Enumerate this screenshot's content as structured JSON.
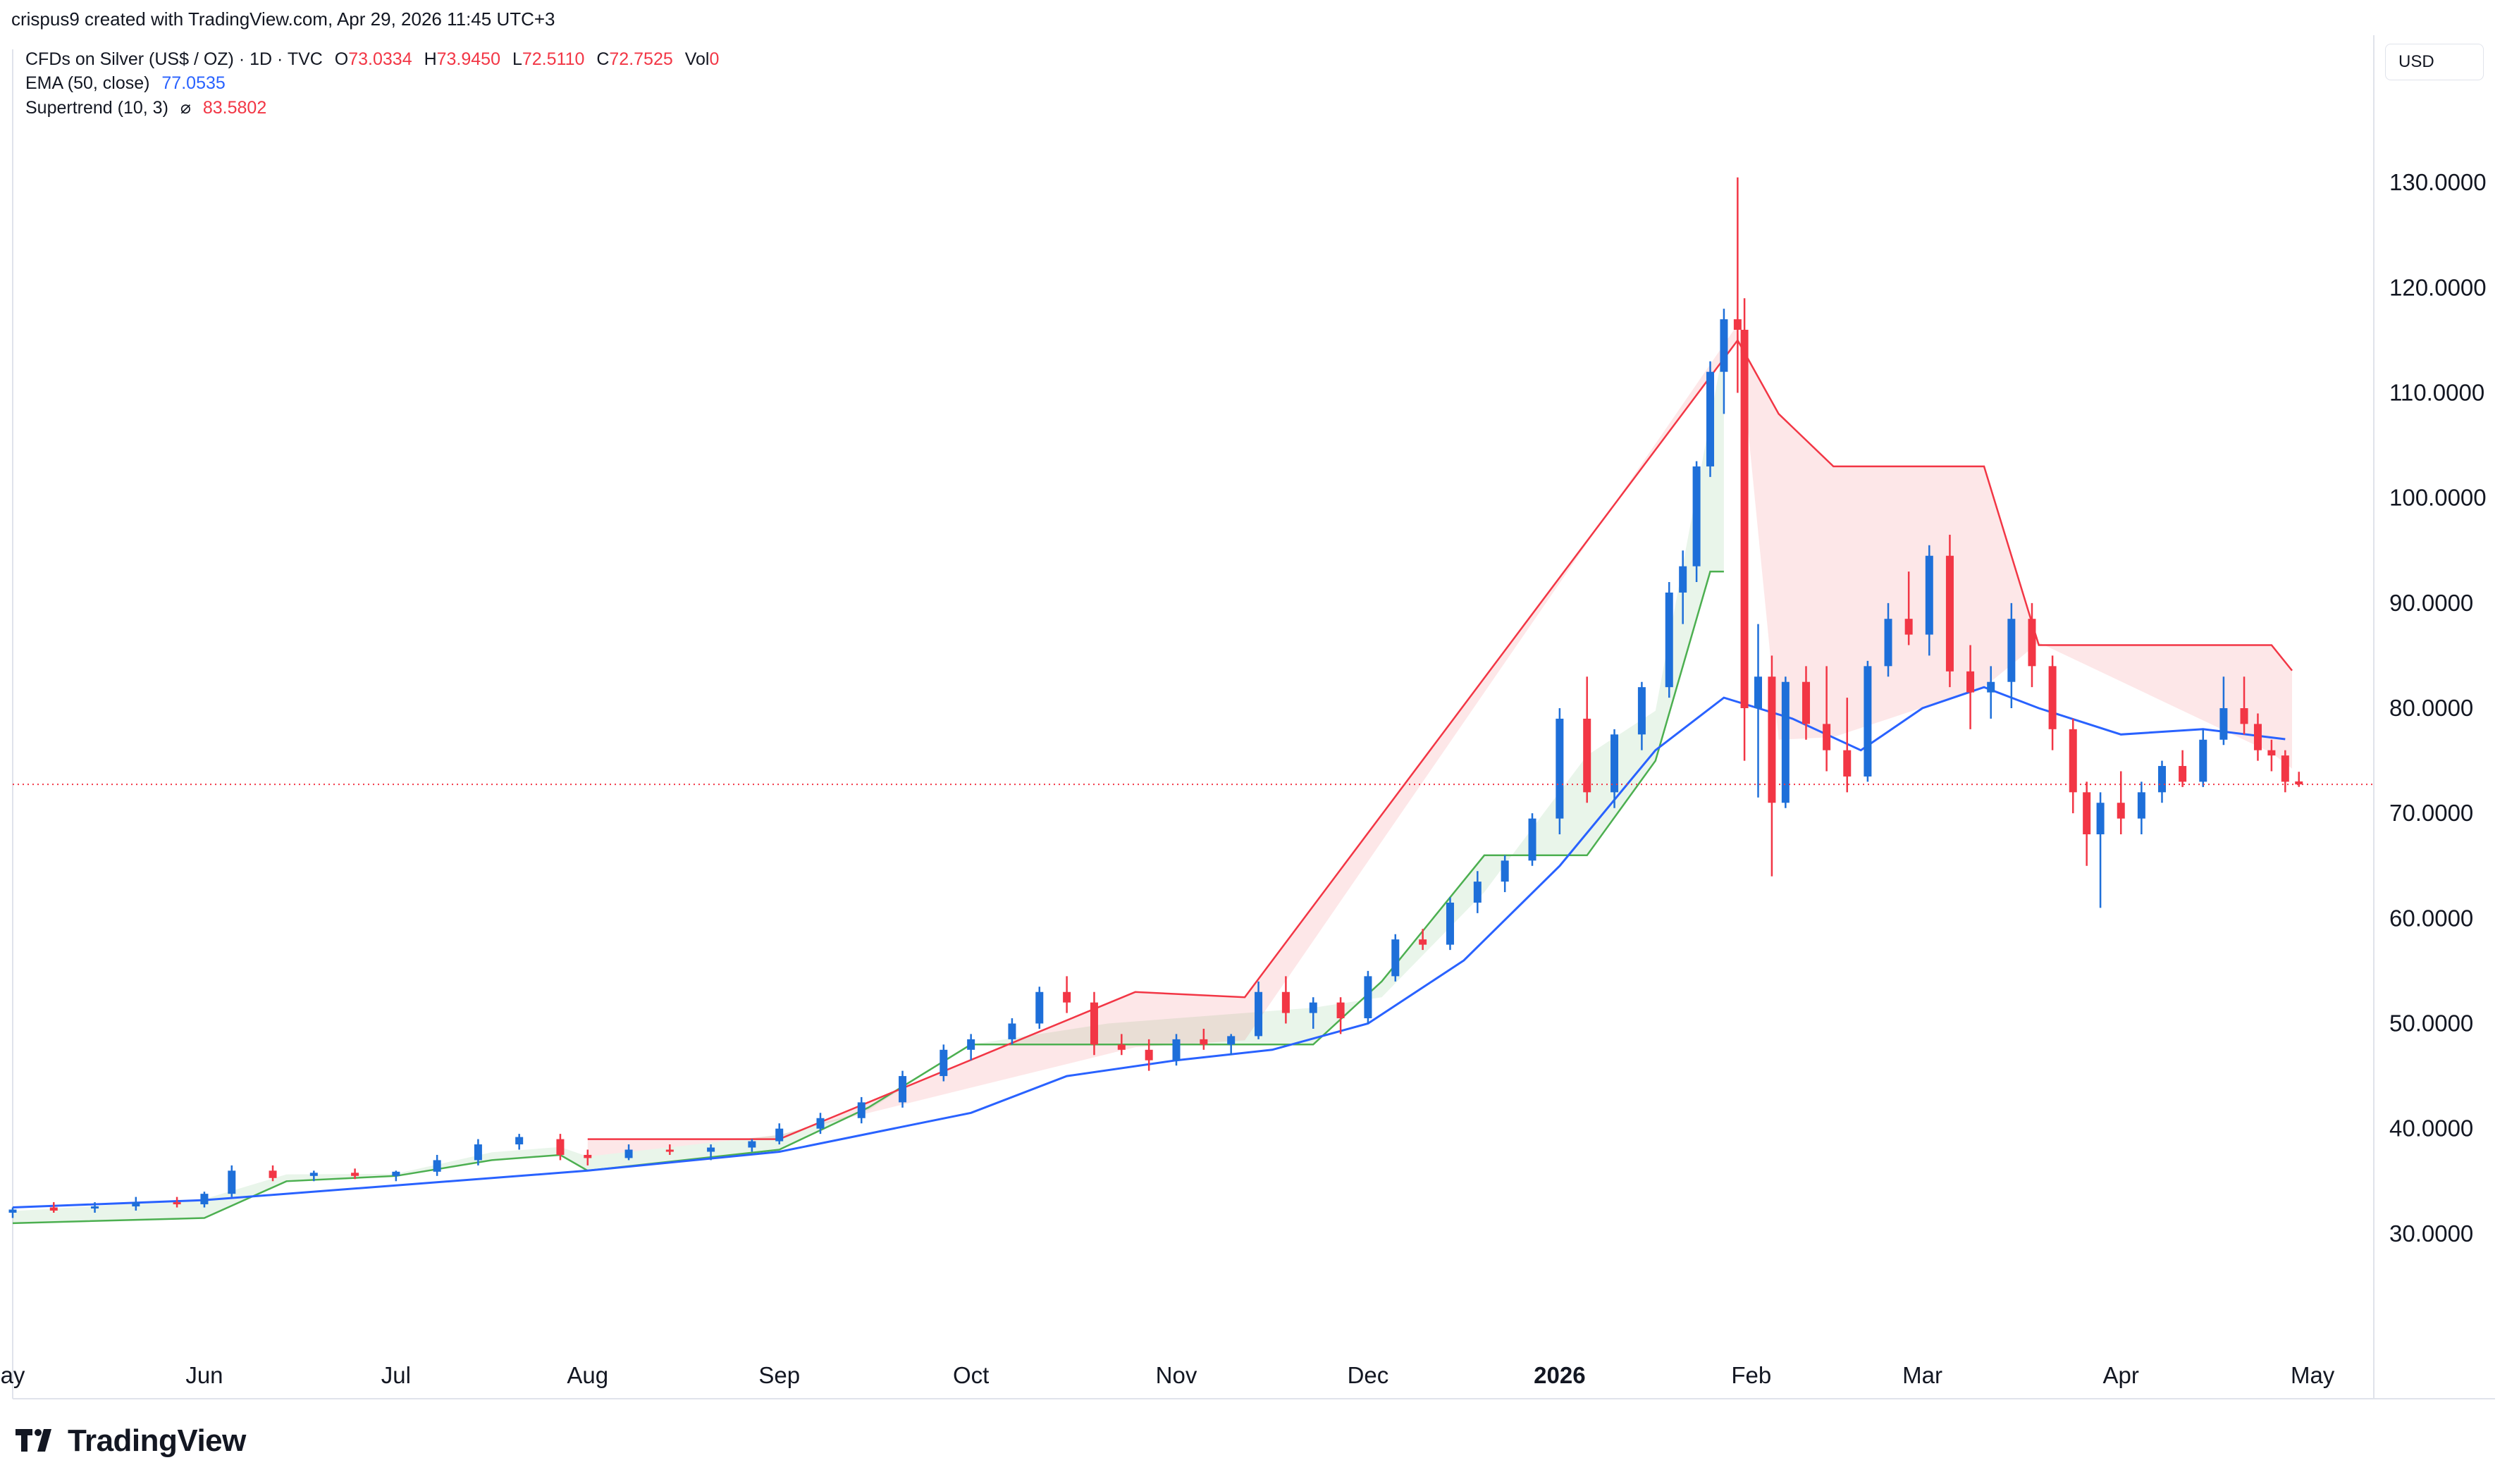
{
  "header": {
    "author": "crispus9 created with TradingView.com, Apr 29, 2026 11:45 UTC+3"
  },
  "legend": {
    "symbol": "CFDs on Silver (US$ / OZ) · 1D · TVC",
    "open_label": "O",
    "open": "73.0334",
    "high_label": "H",
    "high": "73.9450",
    "low_label": "L",
    "low": "72.5110",
    "close_label": "C",
    "close": "72.7525",
    "vol_label": "Vol",
    "vol": "0",
    "ema_label": "EMA (50, close)",
    "ema_value": "77.0535",
    "st_label": "Supertrend (10, 3)",
    "st_symbol": "⌀",
    "st_value": "83.5802"
  },
  "currency_button": "USD",
  "logo": {
    "text": "TradingView"
  },
  "colors": {
    "up": "#1e6fd9",
    "down": "#f23645",
    "ema": "#2962ff",
    "st_up": "#4caf50",
    "st_down": "#f23645",
    "grid": "#f0f3fa"
  },
  "chart_data": {
    "type": "candlestick",
    "title": "CFDs on Silver (US$ / OZ) · 1D · TVC",
    "ylim": [
      20,
      140
    ],
    "y_ticks": [
      "30.0000",
      "40.0000",
      "50.0000",
      "60.0000",
      "70.0000",
      "80.0000",
      "90.0000",
      "100.0000",
      "110.0000",
      "120.0000",
      "130.0000"
    ],
    "x_ticks": [
      {
        "label": "ay",
        "day": 0
      },
      {
        "label": "Jun",
        "day": 28
      },
      {
        "label": "Jul",
        "day": 56
      },
      {
        "label": "Aug",
        "day": 84
      },
      {
        "label": "Sep",
        "day": 112
      },
      {
        "label": "Oct",
        "day": 140
      },
      {
        "label": "Nov",
        "day": 170
      },
      {
        "label": "Dec",
        "day": 198
      },
      {
        "label": "2026",
        "day": 226
      },
      {
        "label": "Feb",
        "day": 254
      },
      {
        "label": "Mar",
        "day": 279
      },
      {
        "label": "Apr",
        "day": 308
      },
      {
        "label": "May",
        "day": 336
      }
    ],
    "last_price": 72.7525,
    "ema_50": [
      [
        0,
        32.5
      ],
      [
        28,
        33.2
      ],
      [
        56,
        34.6
      ],
      [
        84,
        36.0
      ],
      [
        112,
        37.8
      ],
      [
        140,
        41.5
      ],
      [
        154,
        45.0
      ],
      [
        170,
        46.5
      ],
      [
        184,
        47.5
      ],
      [
        198,
        50.0
      ],
      [
        212,
        56.0
      ],
      [
        226,
        65.0
      ],
      [
        240,
        76.0
      ],
      [
        250,
        81.0
      ],
      [
        260,
        79.0
      ],
      [
        270,
        76.0
      ],
      [
        279,
        80.0
      ],
      [
        288,
        82.0
      ],
      [
        296,
        80.0
      ],
      [
        308,
        77.5
      ],
      [
        320,
        78.0
      ],
      [
        332,
        77.05
      ]
    ],
    "supertrend_up": [
      [
        0,
        31.0
      ],
      [
        28,
        31.5
      ],
      [
        40,
        35.0
      ],
      [
        56,
        35.5
      ],
      [
        70,
        37.0
      ],
      [
        80,
        37.5
      ],
      [
        84,
        36.0
      ],
      [
        112,
        38.0
      ],
      [
        125,
        42.0
      ],
      [
        140,
        48.0
      ],
      [
        160,
        48.0
      ],
      [
        190,
        48.0
      ],
      [
        200,
        54.0
      ],
      [
        215,
        66.0
      ],
      [
        230,
        66.0
      ],
      [
        240,
        75.0
      ],
      [
        248,
        93.0
      ],
      [
        250,
        93.0
      ]
    ],
    "supertrend_down": [
      [
        84,
        39.0
      ],
      [
        112,
        39.0
      ],
      [
        164,
        53.0
      ],
      [
        180,
        52.5
      ],
      [
        252,
        115.0
      ],
      [
        258,
        108.0
      ],
      [
        266,
        103.0
      ],
      [
        288,
        103.0
      ],
      [
        296,
        86.0
      ],
      [
        330,
        86.0
      ],
      [
        333,
        83.58
      ]
    ],
    "candles": [
      [
        0,
        32.0,
        32.5,
        31.5,
        32.3
      ],
      [
        6,
        32.5,
        33.0,
        32.0,
        32.2
      ],
      [
        12,
        32.4,
        33.0,
        32.0,
        32.6
      ],
      [
        18,
        32.6,
        33.5,
        32.2,
        33.0
      ],
      [
        24,
        33.0,
        33.5,
        32.5,
        32.8
      ],
      [
        28,
        32.8,
        34.0,
        32.5,
        33.8
      ],
      [
        32,
        33.8,
        36.5,
        33.5,
        36.0
      ],
      [
        38,
        36.0,
        36.5,
        35.0,
        35.3
      ],
      [
        44,
        35.5,
        36.0,
        35.0,
        35.8
      ],
      [
        50,
        35.8,
        36.2,
        35.2,
        35.5
      ],
      [
        56,
        35.5,
        36.0,
        35.0,
        35.9
      ],
      [
        62,
        35.9,
        37.5,
        35.5,
        37.0
      ],
      [
        68,
        37.0,
        39.0,
        36.5,
        38.5
      ],
      [
        74,
        38.5,
        39.5,
        38.0,
        39.2
      ],
      [
        80,
        39.0,
        39.5,
        37.0,
        37.5
      ],
      [
        84,
        37.5,
        38.0,
        36.5,
        37.2
      ],
      [
        90,
        37.2,
        38.5,
        37.0,
        38.0
      ],
      [
        96,
        38.0,
        38.5,
        37.5,
        37.8
      ],
      [
        102,
        37.8,
        38.5,
        37.0,
        38.2
      ],
      [
        108,
        38.2,
        39.0,
        37.8,
        38.8
      ],
      [
        112,
        38.8,
        40.5,
        38.5,
        40.0
      ],
      [
        118,
        40.0,
        41.5,
        39.5,
        41.0
      ],
      [
        124,
        41.0,
        43.0,
        40.5,
        42.5
      ],
      [
        130,
        42.5,
        45.5,
        42.0,
        45.0
      ],
      [
        136,
        45.0,
        48.0,
        44.5,
        47.5
      ],
      [
        140,
        47.5,
        49.0,
        46.5,
        48.5
      ],
      [
        146,
        48.5,
        50.5,
        48.0,
        50.0
      ],
      [
        150,
        50.0,
        53.5,
        49.5,
        53.0
      ],
      [
        154,
        53.0,
        54.5,
        51.0,
        52.0
      ],
      [
        158,
        52.0,
        53.0,
        47.0,
        48.0
      ],
      [
        162,
        48.0,
        49.0,
        47.0,
        47.5
      ],
      [
        166,
        47.5,
        48.5,
        45.5,
        46.5
      ],
      [
        170,
        46.5,
        49.0,
        46.0,
        48.5
      ],
      [
        174,
        48.5,
        49.5,
        47.5,
        48.0
      ],
      [
        178,
        48.0,
        49.0,
        47.0,
        48.8
      ],
      [
        182,
        48.8,
        54.0,
        48.5,
        53.0
      ],
      [
        186,
        53.0,
        54.5,
        50.0,
        51.0
      ],
      [
        190,
        51.0,
        52.5,
        49.5,
        52.0
      ],
      [
        194,
        52.0,
        52.5,
        49.0,
        50.5
      ],
      [
        198,
        50.5,
        55.0,
        50.0,
        54.5
      ],
      [
        202,
        54.5,
        58.5,
        54.0,
        58.0
      ],
      [
        206,
        58.0,
        59.0,
        57.0,
        57.5
      ],
      [
        210,
        57.5,
        62.0,
        57.0,
        61.5
      ],
      [
        214,
        61.5,
        64.5,
        60.5,
        63.5
      ],
      [
        218,
        63.5,
        66.0,
        62.5,
        65.5
      ],
      [
        222,
        65.5,
        70.0,
        65.0,
        69.5
      ],
      [
        226,
        69.5,
        80.0,
        68.0,
        79.0
      ],
      [
        230,
        79.0,
        83.0,
        71.0,
        72.0
      ],
      [
        234,
        72.0,
        78.0,
        70.5,
        77.5
      ],
      [
        238,
        77.5,
        82.5,
        76.0,
        82.0
      ],
      [
        242,
        82.0,
        92.0,
        81.0,
        91.0
      ],
      [
        244,
        91.0,
        95.0,
        88.0,
        93.5
      ],
      [
        246,
        93.5,
        103.5,
        92.0,
        103.0
      ],
      [
        248,
        103.0,
        113.0,
        102.0,
        112.0
      ],
      [
        250,
        112.0,
        118.0,
        108.0,
        117.0
      ],
      [
        252,
        117.0,
        130.5,
        110.0,
        116.0
      ],
      [
        253,
        116.0,
        119.0,
        75.0,
        80.0
      ],
      [
        255,
        80.0,
        88.0,
        71.5,
        83.0
      ],
      [
        257,
        83.0,
        85.0,
        64.0,
        71.0
      ],
      [
        259,
        71.0,
        83.0,
        70.5,
        82.5
      ],
      [
        262,
        82.5,
        84.0,
        77.0,
        78.5
      ],
      [
        265,
        78.5,
        84.0,
        74.0,
        76.0
      ],
      [
        268,
        76.0,
        81.0,
        72.0,
        73.5
      ],
      [
        271,
        73.5,
        84.5,
        73.0,
        84.0
      ],
      [
        274,
        84.0,
        90.0,
        83.0,
        88.5
      ],
      [
        277,
        88.5,
        93.0,
        86.0,
        87.0
      ],
      [
        280,
        87.0,
        95.5,
        85.0,
        94.5
      ],
      [
        283,
        94.5,
        96.5,
        82.0,
        83.5
      ],
      [
        286,
        83.5,
        86.0,
        78.0,
        81.5
      ],
      [
        289,
        81.5,
        84.0,
        79.0,
        82.5
      ],
      [
        292,
        82.5,
        90.0,
        80.0,
        88.5
      ],
      [
        295,
        88.5,
        90.0,
        82.0,
        84.0
      ],
      [
        298,
        84.0,
        85.0,
        76.0,
        78.0
      ],
      [
        301,
        78.0,
        79.0,
        70.0,
        72.0
      ],
      [
        303,
        72.0,
        73.0,
        65.0,
        68.0
      ],
      [
        305,
        68.0,
        72.0,
        61.0,
        71.0
      ],
      [
        308,
        71.0,
        74.0,
        68.0,
        69.5
      ],
      [
        311,
        69.5,
        73.0,
        68.0,
        72.0
      ],
      [
        314,
        72.0,
        75.0,
        71.0,
        74.5
      ],
      [
        317,
        74.5,
        76.0,
        72.5,
        73.0
      ],
      [
        320,
        73.0,
        78.0,
        72.5,
        77.0
      ],
      [
        323,
        77.0,
        83.0,
        76.5,
        80.0
      ],
      [
        326,
        80.0,
        83.0,
        77.5,
        78.5
      ],
      [
        328,
        78.5,
        79.5,
        75.0,
        76.0
      ],
      [
        330,
        76.0,
        77.0,
        74.0,
        75.5
      ],
      [
        332,
        75.5,
        76.0,
        72.0,
        73.0
      ],
      [
        334,
        73.03,
        73.95,
        72.51,
        72.75
      ]
    ]
  }
}
